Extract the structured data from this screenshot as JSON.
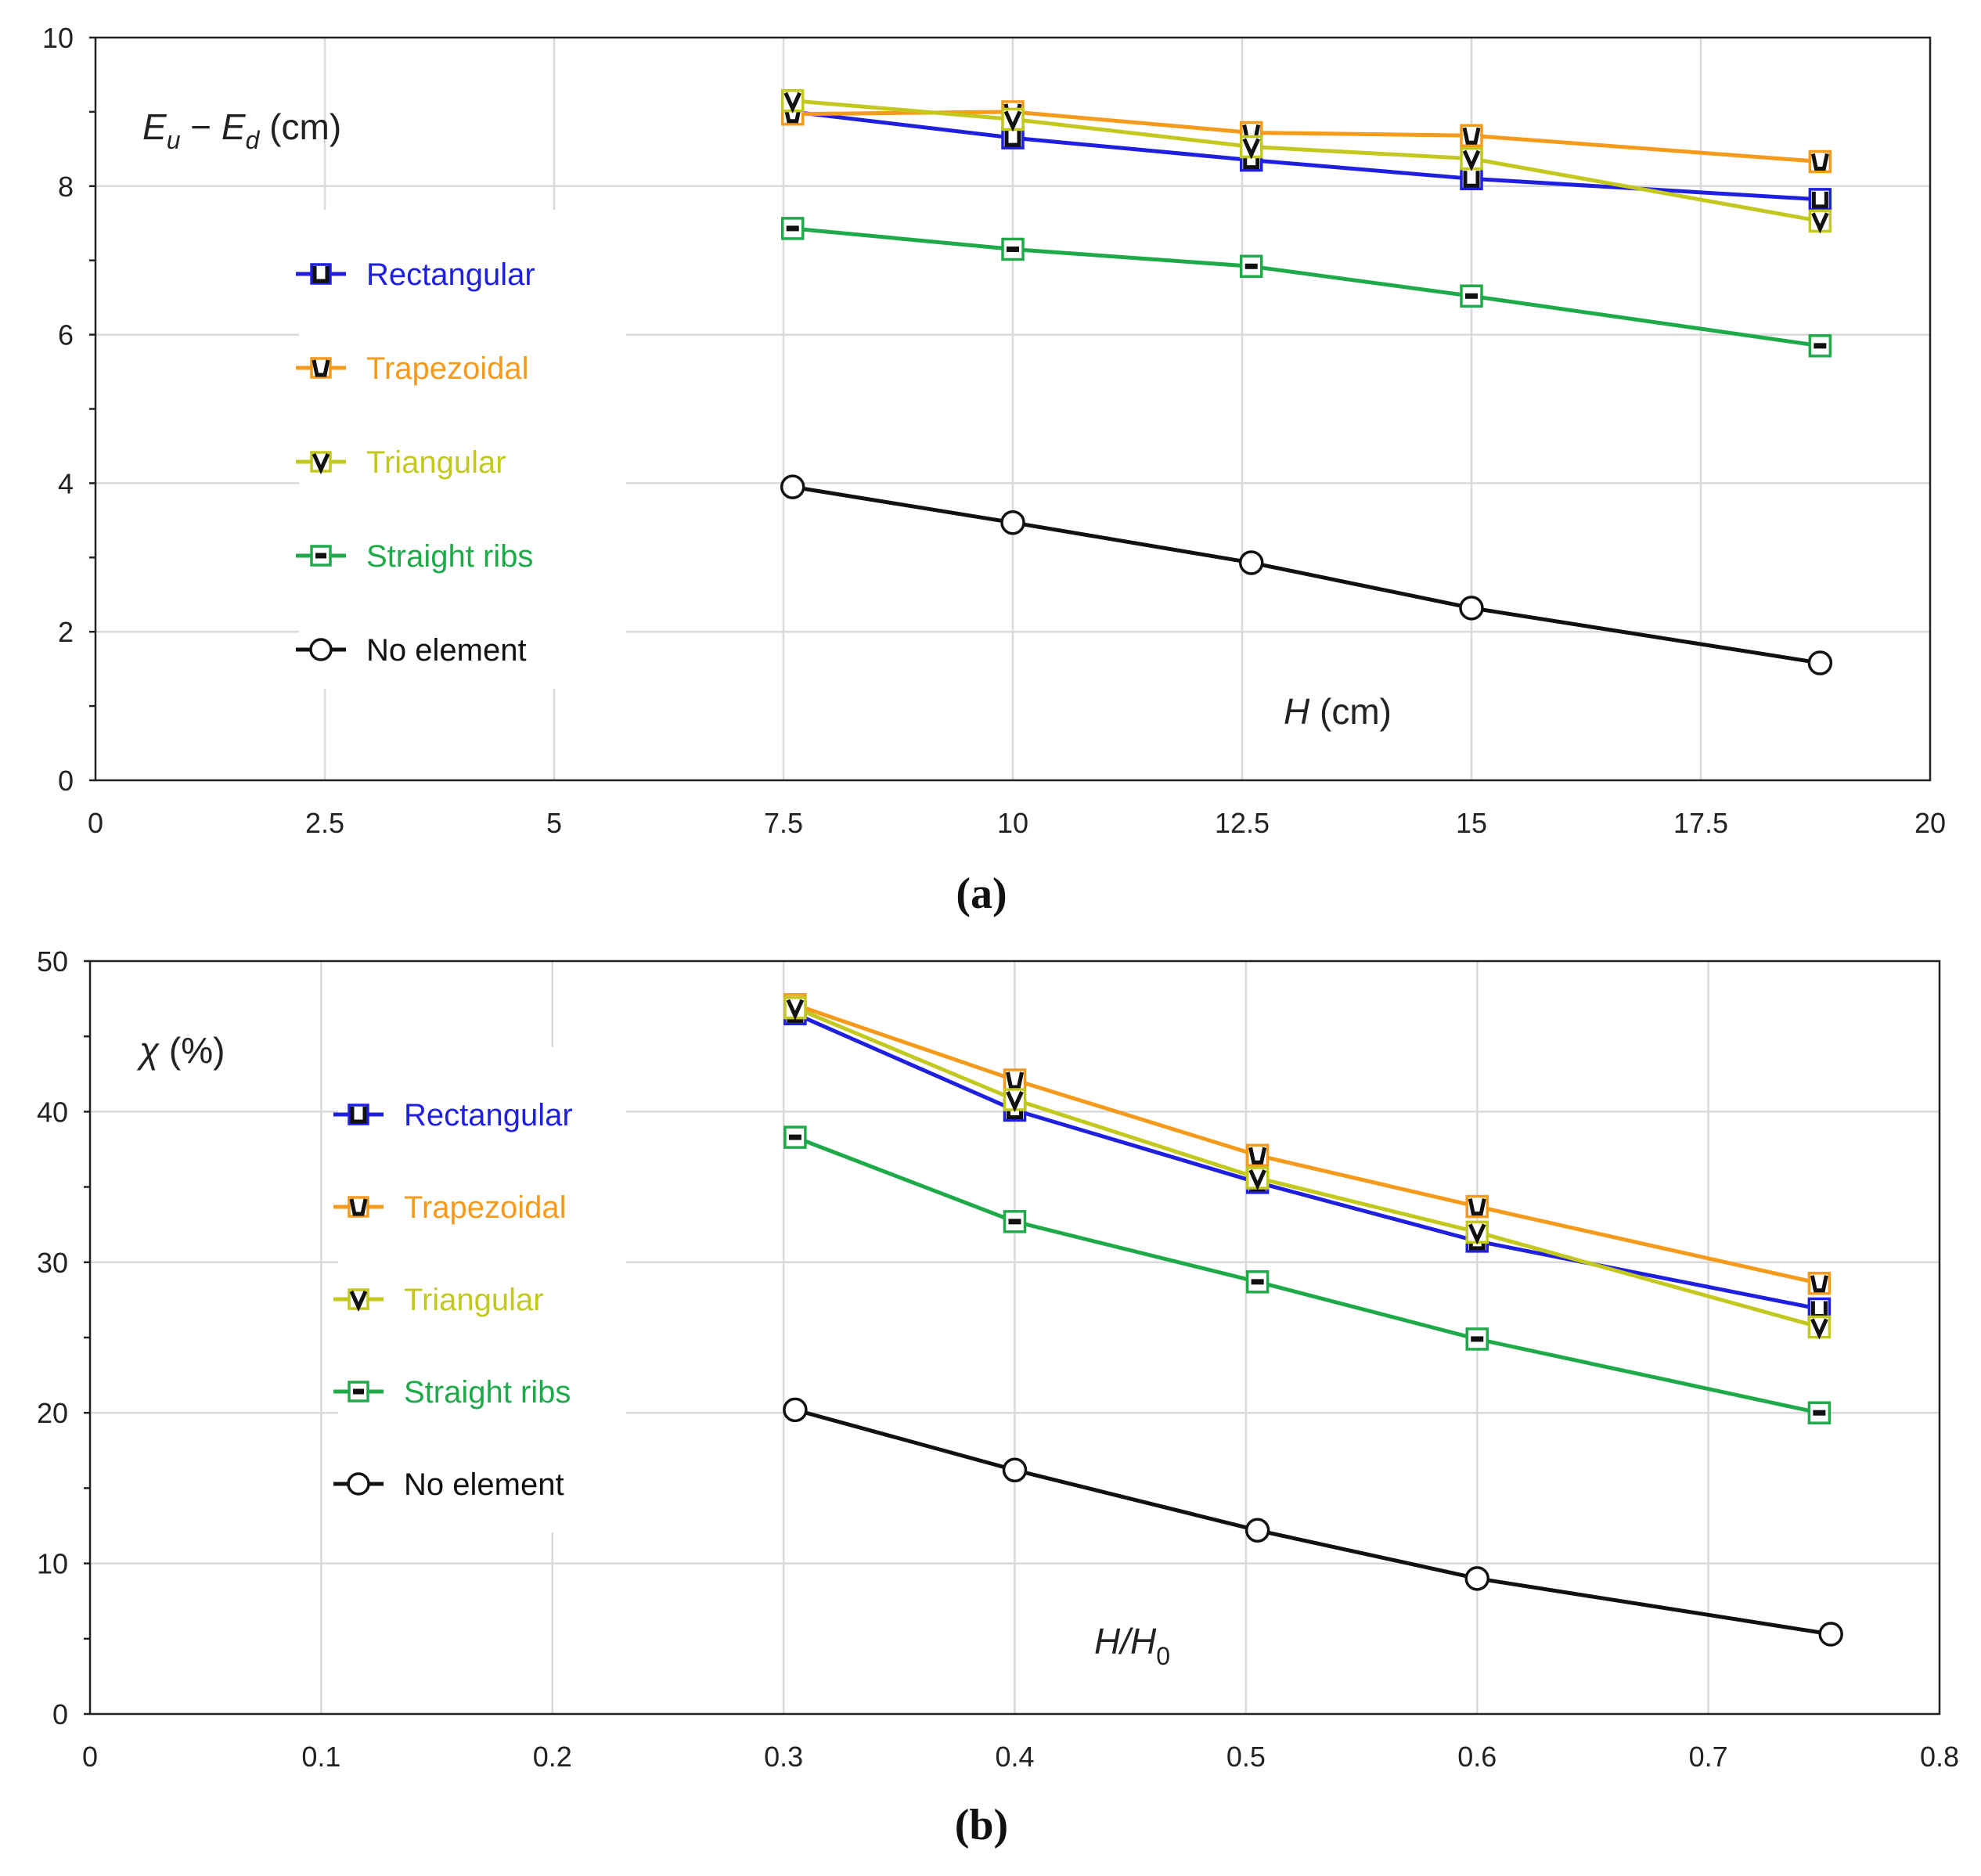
{
  "chart_data": [
    {
      "type": "line",
      "panel_label": "(a)",
      "ylabel_parts": [
        "E",
        "u",
        " − ",
        "E",
        "d",
        " (cm)"
      ],
      "xlabel_parts": [
        "H",
        " (cm)"
      ],
      "xlim": [
        0,
        20
      ],
      "ylim": [
        0,
        10
      ],
      "xticks": [
        0,
        2.5,
        5,
        7.5,
        10,
        12.5,
        15,
        17.5,
        20
      ],
      "xtick_labels": [
        "0",
        "2.5",
        "5",
        "7.5",
        "10",
        "12.5",
        "15",
        "17.5",
        "20"
      ],
      "yticks": [
        0,
        2,
        4,
        6,
        8,
        10
      ],
      "ytick_labels": [
        "0",
        "2",
        "4",
        "6",
        "8",
        "10"
      ],
      "grid": true,
      "legend_position": "left",
      "series": [
        {
          "name": "Rectangular",
          "color": "#1f1fe0",
          "marker": "rect",
          "x": [
            7.6,
            10,
            12.6,
            15,
            18.8
          ],
          "y": [
            9.0,
            8.65,
            8.35,
            8.1,
            7.82
          ]
        },
        {
          "name": "Trapezoidal",
          "color": "#f59a1b",
          "marker": "trap",
          "x": [
            7.6,
            10,
            12.6,
            15,
            18.8
          ],
          "y": [
            8.97,
            9.0,
            8.72,
            8.68,
            8.33
          ]
        },
        {
          "name": "Triangular",
          "color": "#c3c81e",
          "marker": "tri",
          "x": [
            7.6,
            10,
            12.6,
            15,
            18.8
          ],
          "y": [
            9.15,
            8.9,
            8.53,
            8.37,
            7.53
          ]
        },
        {
          "name": "Straight ribs",
          "color": "#1faa4a",
          "marker": "ribs",
          "x": [
            7.6,
            10,
            12.6,
            15,
            18.8
          ],
          "y": [
            7.43,
            7.15,
            6.92,
            6.52,
            5.85
          ]
        },
        {
          "name": "No element",
          "color": "#111111",
          "marker": "circle",
          "x": [
            7.6,
            10,
            12.6,
            15,
            18.8
          ],
          "y": [
            3.95,
            3.47,
            2.93,
            2.32,
            1.58
          ]
        }
      ]
    },
    {
      "type": "line",
      "panel_label": "(b)",
      "ylabel_parts": [
        "χ",
        " (%)"
      ],
      "xlabel_parts": [
        "H",
        "/",
        "H",
        "0"
      ],
      "xlim": [
        0,
        0.8
      ],
      "ylim": [
        0,
        50
      ],
      "xticks": [
        0,
        0.1,
        0.2,
        0.3,
        0.4,
        0.5,
        0.6,
        0.7,
        0.8
      ],
      "xtick_labels": [
        "0",
        "0.1",
        "0.2",
        "0.3",
        "0.4",
        "0.5",
        "0.6",
        "0.7",
        "0.8"
      ],
      "yticks": [
        0,
        10,
        20,
        30,
        40,
        50
      ],
      "ytick_labels": [
        "0",
        "10",
        "20",
        "30",
        "40",
        "50"
      ],
      "grid": true,
      "legend_position": "left",
      "series": [
        {
          "name": "Rectangular",
          "color": "#1f1fe0",
          "marker": "rect",
          "x": [
            0.305,
            0.4,
            0.505,
            0.6,
            0.748
          ],
          "y": [
            46.5,
            40.1,
            35.3,
            31.4,
            26.9
          ]
        },
        {
          "name": "Trapezoidal",
          "color": "#f59a1b",
          "marker": "trap",
          "x": [
            0.305,
            0.4,
            0.505,
            0.6,
            0.748
          ],
          "y": [
            47.1,
            42.1,
            37.1,
            33.7,
            28.6
          ]
        },
        {
          "name": "Triangular",
          "color": "#c3c81e",
          "marker": "tri",
          "x": [
            0.305,
            0.4,
            0.505,
            0.6,
            0.748
          ],
          "y": [
            46.9,
            40.8,
            35.6,
            32.0,
            25.7
          ]
        },
        {
          "name": "Straight ribs",
          "color": "#1faa4a",
          "marker": "ribs",
          "x": [
            0.305,
            0.4,
            0.505,
            0.6,
            0.748
          ],
          "y": [
            38.3,
            32.7,
            28.7,
            24.9,
            20.0
          ]
        },
        {
          "name": "No element",
          "color": "#111111",
          "marker": "circle",
          "x": [
            0.305,
            0.4,
            0.505,
            0.6,
            0.753
          ],
          "y": [
            20.2,
            16.2,
            12.2,
            9.0,
            5.3
          ]
        }
      ]
    }
  ]
}
